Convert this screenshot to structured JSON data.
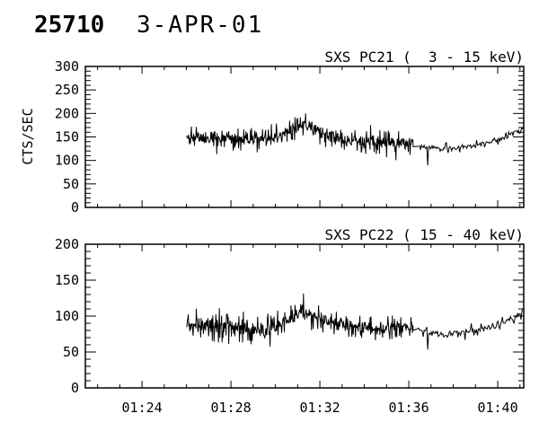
{
  "header": {
    "observation_id": "25710",
    "date": "3-APR-01"
  },
  "chart_data": [
    {
      "type": "line",
      "title": "SXS PC21 (  3 - 15 keV)",
      "ylabel": "CTS/SEC",
      "line_color": "#000000",
      "ylim": [
        0,
        300
      ],
      "ytick_major": 50,
      "ytick_minor": 10,
      "ytick_labels": [
        "0",
        "50",
        "100",
        "150",
        "200",
        "250",
        "300"
      ],
      "xlim_minutes": [
        81.45,
        101.17
      ],
      "xtick_major_minutes": [
        84,
        88,
        92,
        96,
        100
      ],
      "xtick_labels": [
        "01:24",
        "01:28",
        "01:32",
        "01:36",
        "01:40"
      ],
      "xtick_minor_step_minutes": 1,
      "show_xtick_labels": false,
      "grid": false,
      "series": [
        {
          "name": "pc21-count-rate",
          "segments": [
            {
              "t_start": 86.0,
              "t_end": 96.2,
              "dt": 0.02,
              "seed": 42,
              "noise_amp": 13,
              "spike_prob_big": 0.03,
              "spike_prob_med": 0.15,
              "extra_spikes": [],
              "mean_anchors": [
                [
                  86.0,
                  151
                ],
                [
                  86.8,
                  149
                ],
                [
                  87.6,
                  147
                ],
                [
                  88.4,
                  145
                ],
                [
                  89.2,
                  142
                ],
                [
                  89.8,
                  143
                ],
                [
                  90.3,
                  152
                ],
                [
                  90.7,
                  165
                ],
                [
                  91.1,
                  174
                ],
                [
                  91.35,
                  177
                ],
                [
                  91.6,
                  171
                ],
                [
                  92.0,
                  160
                ],
                [
                  92.5,
                  151
                ],
                [
                  93.0,
                  145
                ],
                [
                  93.6,
                  141
                ],
                [
                  94.4,
                  139
                ],
                [
                  95.2,
                  139
                ],
                [
                  96.2,
                  137
                ]
              ]
            },
            {
              "t_start": 96.45,
              "t_end": 101.15,
              "dt": 0.04,
              "seed": 77,
              "noise_amp": 5,
              "spike_prob_big": 0.02,
              "spike_prob_med": 0.12,
              "extra_spikes": [
                [
                  96.85,
                  -40
                ]
              ],
              "mean_anchors": [
                [
                  96.45,
                  133
                ],
                [
                  96.9,
                  129
                ],
                [
                  97.5,
                  125
                ],
                [
                  98.1,
                  126
                ],
                [
                  98.7,
                  130
                ],
                [
                  99.3,
                  135
                ],
                [
                  99.9,
                  142
                ],
                [
                  100.4,
                  150
                ],
                [
                  100.8,
                  158
                ],
                [
                  101.05,
                  166
                ],
                [
                  101.15,
                  172
                ]
              ]
            }
          ]
        }
      ]
    },
    {
      "type": "line",
      "title": "SXS PC22 ( 15 - 40 keV)",
      "ylabel": "",
      "line_color": "#000000",
      "ylim": [
        0,
        200
      ],
      "ytick_major": 50,
      "ytick_minor": 10,
      "ytick_labels": [
        "0",
        "50",
        "100",
        "150",
        "200"
      ],
      "xlim_minutes": [
        81.45,
        101.17
      ],
      "xtick_major_minutes": [
        84,
        88,
        92,
        96,
        100
      ],
      "xtick_labels": [
        "01:24",
        "01:28",
        "01:32",
        "01:36",
        "01:40"
      ],
      "xtick_minor_step_minutes": 1,
      "show_xtick_labels": true,
      "grid": false,
      "series": [
        {
          "name": "pc22-count-rate",
          "segments": [
            {
              "t_start": 86.0,
              "t_end": 96.2,
              "dt": 0.02,
              "seed": 1042,
              "noise_amp": 9,
              "spike_prob_big": 0.03,
              "spike_prob_med": 0.15,
              "extra_spikes": [],
              "mean_anchors": [
                [
                  86.0,
                  88
                ],
                [
                  86.8,
                  87
                ],
                [
                  87.6,
                  86
                ],
                [
                  88.4,
                  84
                ],
                [
                  89.2,
                  82
                ],
                [
                  89.8,
                  83
                ],
                [
                  90.3,
                  90
                ],
                [
                  90.7,
                  98
                ],
                [
                  91.1,
                  104
                ],
                [
                  91.35,
                  106
                ],
                [
                  91.6,
                  102
                ],
                [
                  92.0,
                  95
                ],
                [
                  92.5,
                  90
                ],
                [
                  93.0,
                  86
                ],
                [
                  93.6,
                  84
                ],
                [
                  94.4,
                  83
                ],
                [
                  95.2,
                  83
                ],
                [
                  96.2,
                  83
                ]
              ]
            },
            {
              "t_start": 96.45,
              "t_end": 101.15,
              "dt": 0.04,
              "seed": 1077,
              "noise_amp": 4,
              "spike_prob_big": 0.02,
              "spike_prob_med": 0.12,
              "extra_spikes": [
                [
                  96.85,
                  -25
                ]
              ],
              "mean_anchors": [
                [
                  96.45,
                  80
                ],
                [
                  96.9,
                  78
                ],
                [
                  97.5,
                  75
                ],
                [
                  98.1,
                  76
                ],
                [
                  98.7,
                  79
                ],
                [
                  99.3,
                  82
                ],
                [
                  99.9,
                  87
                ],
                [
                  100.4,
                  93
                ],
                [
                  100.8,
                  98
                ],
                [
                  101.05,
                  103
                ],
                [
                  101.15,
                  107
                ]
              ]
            }
          ]
        }
      ]
    }
  ]
}
